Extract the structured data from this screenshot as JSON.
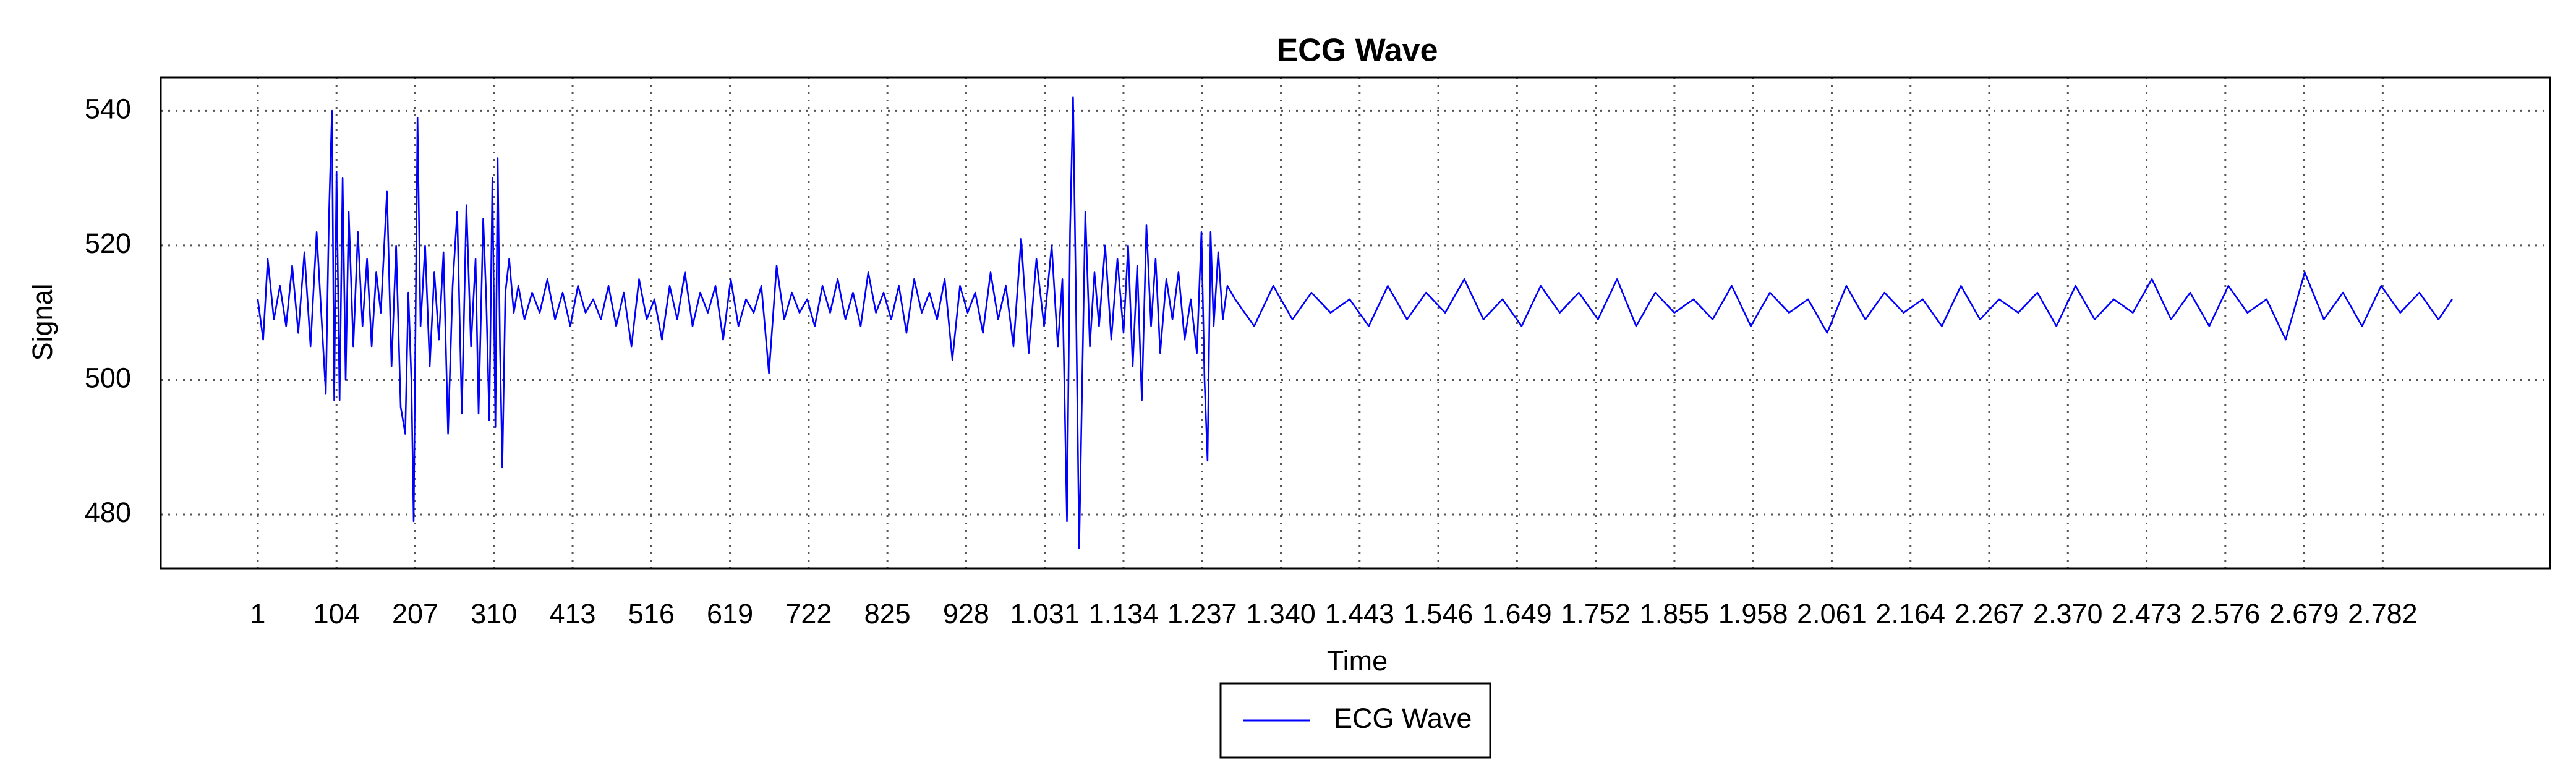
{
  "chart_data": {
    "type": "line",
    "title": "ECG Wave",
    "xlabel": "Time",
    "ylabel": "Signal",
    "xlim": [
      -126,
      3001
    ],
    "ylim": [
      472,
      545
    ],
    "xticks": [
      1,
      104,
      207,
      310,
      413,
      516,
      619,
      722,
      825,
      928,
      {
        "value": 1031,
        "label": "1.031"
      },
      {
        "value": 1134,
        "label": "1.134"
      },
      {
        "value": 1237,
        "label": "1.237"
      },
      {
        "value": 1340,
        "label": "1.340"
      },
      {
        "value": 1443,
        "label": "1.443"
      },
      {
        "value": 1546,
        "label": "1.546"
      },
      {
        "value": 1649,
        "label": "1.649"
      },
      {
        "value": 1752,
        "label": "1.752"
      },
      {
        "value": 1855,
        "label": "1.855"
      },
      {
        "value": 1958,
        "label": "1.958"
      },
      {
        "value": 2061,
        "label": "2.061"
      },
      {
        "value": 2164,
        "label": "2.164"
      },
      {
        "value": 2267,
        "label": "2.267"
      },
      {
        "value": 2370,
        "label": "2.370"
      },
      {
        "value": 2473,
        "label": "2.473"
      },
      {
        "value": 2576,
        "label": "2.576"
      },
      {
        "value": 2679,
        "label": "2.679"
      },
      {
        "value": 2782,
        "label": "2.782"
      }
    ],
    "yticks": [
      480,
      500,
      520,
      540
    ],
    "grid": true,
    "legend": "below",
    "x": [
      1,
      8,
      14,
      22,
      30,
      38,
      46,
      54,
      62,
      70,
      78,
      84,
      90,
      94,
      98,
      101,
      104,
      108,
      112,
      116,
      120,
      126,
      132,
      138,
      144,
      150,
      156,
      162,
      170,
      176,
      182,
      188,
      194,
      198,
      202,
      205,
      210,
      214,
      220,
      226,
      232,
      238,
      244,
      250,
      256,
      262,
      268,
      274,
      280,
      286,
      290,
      296,
      300,
      304,
      308,
      312,
      315,
      318,
      321,
      325,
      330,
      336,
      342,
      350,
      360,
      370,
      380,
      390,
      400,
      410,
      420,
      430,
      440,
      450,
      460,
      470,
      480,
      490,
      500,
      510,
      520,
      530,
      540,
      550,
      560,
      570,
      580,
      590,
      600,
      610,
      620,
      630,
      640,
      650,
      660,
      670,
      680,
      690,
      700,
      710,
      720,
      730,
      740,
      750,
      760,
      770,
      780,
      790,
      800,
      810,
      820,
      830,
      840,
      850,
      860,
      870,
      880,
      890,
      900,
      910,
      920,
      930,
      940,
      950,
      960,
      970,
      980,
      990,
      1000,
      1010,
      1020,
      1030,
      1040,
      1048,
      1054,
      1060,
      1064,
      1068,
      1072,
      1076,
      1080,
      1084,
      1090,
      1096,
      1102,
      1110,
      1118,
      1126,
      1134,
      1140,
      1146,
      1152,
      1158,
      1164,
      1170,
      1176,
      1182,
      1190,
      1198,
      1206,
      1214,
      1222,
      1230,
      1236,
      1240,
      1244,
      1248,
      1252,
      1258,
      1264,
      1270,
      1280,
      1305,
      1330,
      1355,
      1380,
      1405,
      1430,
      1455,
      1480,
      1505,
      1530,
      1555,
      1580,
      1605,
      1630,
      1655,
      1680,
      1705,
      1730,
      1755,
      1780,
      1805,
      1830,
      1855,
      1880,
      1905,
      1930,
      1955,
      1980,
      2005,
      2030,
      2055,
      2080,
      2105,
      2130,
      2155,
      2180,
      2205,
      2230,
      2255,
      2280,
      2305,
      2330,
      2355,
      2380,
      2405,
      2430,
      2455,
      2480,
      2505,
      2530,
      2555,
      2580,
      2605,
      2630,
      2655,
      2680,
      2705,
      2730,
      2755,
      2780,
      2805,
      2830,
      2855,
      2873
    ],
    "series": [
      {
        "name": "ECG Wave",
        "color": "#0000ff",
        "values": [
          512,
          506,
          518,
          509,
          514,
          508,
          517,
          507,
          519,
          505,
          522,
          510,
          498,
          524,
          540,
          497,
          531,
          497,
          530,
          500,
          525,
          505,
          522,
          508,
          518,
          505,
          516,
          510,
          528,
          502,
          520,
          496,
          492,
          513,
          500,
          479,
          539,
          508,
          520,
          502,
          516,
          506,
          519,
          492,
          514,
          525,
          495,
          526,
          505,
          518,
          495,
          524,
          512,
          494,
          530,
          493,
          533,
          505,
          487,
          513,
          518,
          510,
          514,
          509,
          513,
          510,
          515,
          509,
          513,
          508,
          514,
          510,
          512,
          509,
          514,
          508,
          513,
          505,
          515,
          509,
          512,
          506,
          514,
          509,
          516,
          508,
          513,
          510,
          514,
          506,
          515,
          508,
          512,
          510,
          514,
          501,
          517,
          509,
          513,
          510,
          512,
          508,
          514,
          510,
          515,
          509,
          513,
          508,
          516,
          510,
          513,
          509,
          514,
          507,
          515,
          510,
          513,
          509,
          515,
          503,
          514,
          510,
          513,
          507,
          516,
          509,
          514,
          505,
          521,
          504,
          518,
          508,
          520,
          505,
          515,
          479,
          522,
          542,
          510,
          475,
          500,
          525,
          505,
          516,
          508,
          520,
          506,
          518,
          507,
          520,
          502,
          517,
          497,
          523,
          508,
          518,
          504,
          515,
          509,
          516,
          506,
          512,
          504,
          522,
          500,
          488,
          522,
          508,
          519,
          509,
          514,
          512,
          508,
          514,
          509,
          513,
          510,
          512,
          508,
          514,
          509,
          513,
          510,
          515,
          509,
          512,
          508,
          514,
          510,
          513,
          509,
          515,
          508,
          513,
          510,
          512,
          509,
          514,
          508,
          513,
          510,
          512,
          507,
          514,
          509,
          513,
          510,
          512,
          508,
          514,
          509,
          512,
          510,
          513,
          508,
          514,
          509,
          512,
          510,
          515,
          509,
          513,
          508,
          514,
          510,
          512,
          506,
          516,
          509,
          513,
          508,
          514,
          510,
          513,
          509,
          512
        ]
      }
    ]
  }
}
